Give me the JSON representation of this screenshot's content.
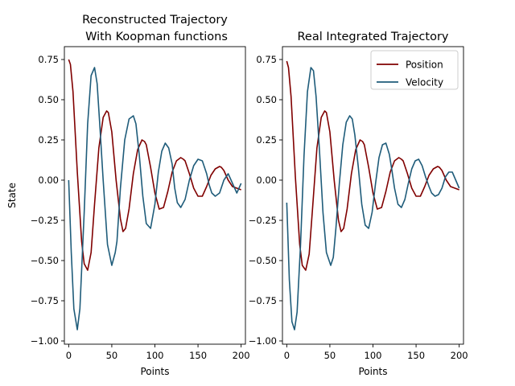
{
  "chart_data": [
    {
      "type": "line",
      "title_lines": [
        "Reconstructed Trajectory",
        "With Koopman functions"
      ],
      "xlabel": "Points",
      "ylabel": "State",
      "xlim": [
        -5,
        205
      ],
      "ylim": [
        -1.02,
        0.83
      ],
      "xticks": [
        0,
        50,
        100,
        150,
        200
      ],
      "yticks": [
        -1.0,
        -0.75,
        -0.5,
        -0.25,
        0.0,
        0.25,
        0.5,
        0.75
      ],
      "ytick_labels": [
        "−1.00",
        "−0.75",
        "−0.50",
        "−0.25",
        "0.00",
        "0.25",
        "0.50",
        "0.75"
      ],
      "series": [
        {
          "color": "#800000",
          "x": [
            0,
            2,
            5,
            10,
            15,
            18,
            22,
            26,
            30,
            35,
            40,
            44,
            46,
            50,
            55,
            60,
            63,
            66,
            70,
            75,
            80,
            85,
            88,
            90,
            95,
            100,
            105,
            110,
            115,
            120,
            125,
            130,
            133,
            135,
            140,
            145,
            150,
            155,
            160,
            165,
            170,
            175,
            177,
            180,
            185,
            190,
            195,
            200
          ],
          "values": [
            0.75,
            0.72,
            0.55,
            0.05,
            -0.38,
            -0.52,
            -0.56,
            -0.45,
            -0.15,
            0.2,
            0.39,
            0.43,
            0.42,
            0.3,
            0.0,
            -0.24,
            -0.32,
            -0.3,
            -0.18,
            0.04,
            0.19,
            0.25,
            0.24,
            0.22,
            0.08,
            -0.08,
            -0.18,
            -0.17,
            -0.07,
            0.05,
            0.12,
            0.14,
            0.13,
            0.12,
            0.04,
            -0.05,
            -0.1,
            -0.1,
            -0.04,
            0.03,
            0.07,
            0.085,
            0.08,
            0.06,
            0.0,
            -0.04,
            -0.05,
            -0.06
          ]
        },
        {
          "color": "#1f5c7a",
          "x": [
            0,
            3,
            6,
            10,
            13,
            18,
            22,
            26,
            30,
            33,
            36,
            40,
            45,
            50,
            54,
            56,
            60,
            65,
            70,
            75,
            78,
            82,
            86,
            90,
            95,
            100,
            104,
            108,
            112,
            116,
            120,
            123,
            126,
            130,
            135,
            140,
            145,
            150,
            155,
            160,
            163,
            166,
            170,
            175,
            180,
            185,
            190,
            195,
            200
          ],
          "values": [
            0.0,
            -0.45,
            -0.8,
            -0.93,
            -0.8,
            -0.2,
            0.35,
            0.65,
            0.7,
            0.6,
            0.35,
            0.0,
            -0.4,
            -0.53,
            -0.45,
            -0.38,
            -0.05,
            0.25,
            0.38,
            0.4,
            0.35,
            0.15,
            -0.1,
            -0.27,
            -0.3,
            -0.15,
            0.05,
            0.18,
            0.23,
            0.2,
            0.1,
            -0.05,
            -0.14,
            -0.17,
            -0.12,
            0.0,
            0.09,
            0.13,
            0.12,
            0.04,
            -0.03,
            -0.08,
            -0.1,
            -0.08,
            0.0,
            0.04,
            -0.02,
            -0.08,
            -0.02
          ]
        }
      ]
    },
    {
      "type": "line",
      "title_lines": [
        "Real Integrated Trajectory"
      ],
      "xlabel": "Points",
      "xlim": [
        -5,
        205
      ],
      "ylim": [
        -1.02,
        0.83
      ],
      "xticks": [
        0,
        50,
        100,
        150,
        200
      ],
      "yticks": [
        -1.0,
        -0.75,
        -0.5,
        -0.25,
        0.0,
        0.25,
        0.5,
        0.75
      ],
      "ytick_labels": [
        "−1.00",
        "−0.75",
        "−0.50",
        "−0.25",
        "0.00",
        "0.25",
        "0.50",
        "0.75"
      ],
      "legend": {
        "position": "top-right",
        "entries": [
          "Position",
          "Velocity"
        ]
      },
      "series": [
        {
          "name": "Position",
          "color": "#800000",
          "x": [
            0,
            2,
            5,
            10,
            15,
            18,
            22,
            26,
            30,
            35,
            40,
            44,
            46,
            50,
            55,
            60,
            63,
            66,
            70,
            75,
            80,
            85,
            88,
            90,
            95,
            100,
            105,
            110,
            115,
            120,
            125,
            130,
            133,
            135,
            140,
            145,
            150,
            155,
            160,
            165,
            170,
            175,
            177,
            180,
            185,
            190,
            195,
            200
          ],
          "values": [
            0.74,
            0.7,
            0.52,
            0.02,
            -0.4,
            -0.53,
            -0.56,
            -0.46,
            -0.17,
            0.2,
            0.39,
            0.43,
            0.42,
            0.3,
            0.0,
            -0.25,
            -0.32,
            -0.3,
            -0.18,
            0.04,
            0.19,
            0.25,
            0.24,
            0.22,
            0.08,
            -0.08,
            -0.18,
            -0.17,
            -0.07,
            0.05,
            0.12,
            0.14,
            0.13,
            0.12,
            0.04,
            -0.05,
            -0.1,
            -0.1,
            -0.04,
            0.03,
            0.07,
            0.085,
            0.08,
            0.06,
            0.0,
            -0.04,
            -0.05,
            -0.06
          ]
        },
        {
          "name": "Velocity",
          "color": "#1f5c7a",
          "x": [
            0,
            3,
            6,
            9,
            12,
            16,
            20,
            24,
            28,
            31,
            34,
            38,
            42,
            46,
            51,
            54,
            57,
            61,
            65,
            69,
            73,
            76,
            79,
            83,
            87,
            91,
            95,
            99,
            103,
            107,
            111,
            115,
            119,
            122,
            125,
            129,
            133,
            137,
            141,
            145,
            149,
            153,
            157,
            161,
            165,
            168,
            172,
            176,
            180,
            184,
            188,
            192,
            196,
            200
          ],
          "values": [
            -0.14,
            -0.62,
            -0.88,
            -0.93,
            -0.82,
            -0.4,
            0.15,
            0.55,
            0.7,
            0.68,
            0.52,
            0.18,
            -0.2,
            -0.45,
            -0.53,
            -0.48,
            -0.3,
            -0.02,
            0.22,
            0.36,
            0.4,
            0.38,
            0.28,
            0.08,
            -0.15,
            -0.28,
            -0.3,
            -0.2,
            -0.02,
            0.14,
            0.22,
            0.23,
            0.16,
            0.06,
            -0.05,
            -0.15,
            -0.17,
            -0.12,
            -0.02,
            0.07,
            0.12,
            0.13,
            0.09,
            0.02,
            -0.04,
            -0.08,
            -0.1,
            -0.09,
            -0.05,
            0.02,
            0.05,
            0.05,
            0.0,
            -0.05
          ]
        }
      ]
    }
  ]
}
